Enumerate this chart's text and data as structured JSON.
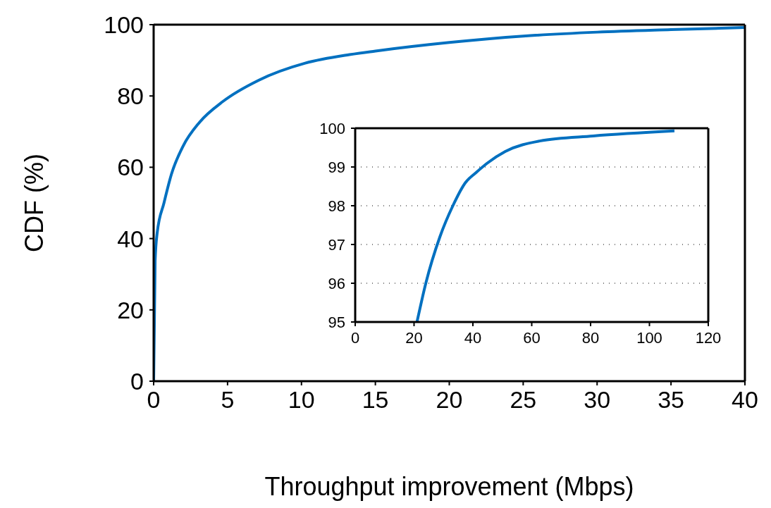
{
  "chart_data": [
    {
      "type": "line",
      "xlabel": "Throughput improvement (Mbps)",
      "ylabel": "CDF (%)",
      "xlim": [
        0,
        40
      ],
      "xticks": [
        0,
        5,
        10,
        15,
        20,
        25,
        30,
        35,
        40
      ],
      "ylim": [
        0,
        100
      ],
      "yticks": [
        0,
        20,
        40,
        60,
        80,
        100
      ],
      "grid": false,
      "marker": "none",
      "line_style": "solid",
      "series": [
        {
          "color": "#0070c0",
          "x": [
            0,
            0.1,
            0.24,
            0.7,
            1.2,
            2,
            3.1,
            4.7,
            7.1,
            10.25,
            13.25,
            15,
            20,
            25,
            30,
            35,
            40
          ],
          "values": [
            0,
            33.7,
            41.6,
            50,
            58,
            66,
            72.6,
            78.5,
            84.4,
            89.2,
            91.6,
            92.6,
            95,
            96.8,
            97.9,
            98.6,
            99.2
          ]
        }
      ]
    },
    {
      "type": "line",
      "xlim": [
        0,
        120
      ],
      "xticks": [
        0,
        20,
        40,
        60,
        80,
        100,
        120
      ],
      "ylim": [
        95,
        100
      ],
      "yticks": [
        95,
        96,
        97,
        98,
        99,
        100
      ],
      "grid": "y",
      "marker": "none",
      "line_style": "solid",
      "series": [
        {
          "color": "#0070c0",
          "x": [
            21,
            24,
            28.8,
            33.2,
            37.5,
            41,
            44.9,
            51,
            62.7,
            80.9,
            108.5
          ],
          "values": [
            95,
            96,
            97.2,
            98,
            98.6,
            98.85,
            99.1,
            99.4,
            99.67,
            99.8,
            99.93
          ]
        }
      ]
    }
  ]
}
